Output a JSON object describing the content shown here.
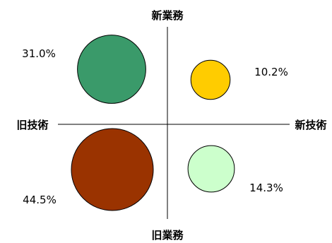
{
  "chart_data": {
    "type": "bubble",
    "axes": {
      "top": "新業務",
      "bottom": "旧業務",
      "left": "旧技術",
      "right": "新技術"
    },
    "bubbles": [
      {
        "quadrant": "top-left",
        "label": "31.0%",
        "value": 31.0,
        "color": "#3a9a6a"
      },
      {
        "quadrant": "top-right",
        "label": "10.2%",
        "value": 10.2,
        "color": "#ffcc00"
      },
      {
        "quadrant": "bottom-left",
        "label": "44.5%",
        "value": 44.5,
        "color": "#9a3300"
      },
      {
        "quadrant": "bottom-right",
        "label": "14.3%",
        "value": 14.3,
        "color": "#ccffcc"
      }
    ],
    "legend": "none",
    "grid": false
  }
}
